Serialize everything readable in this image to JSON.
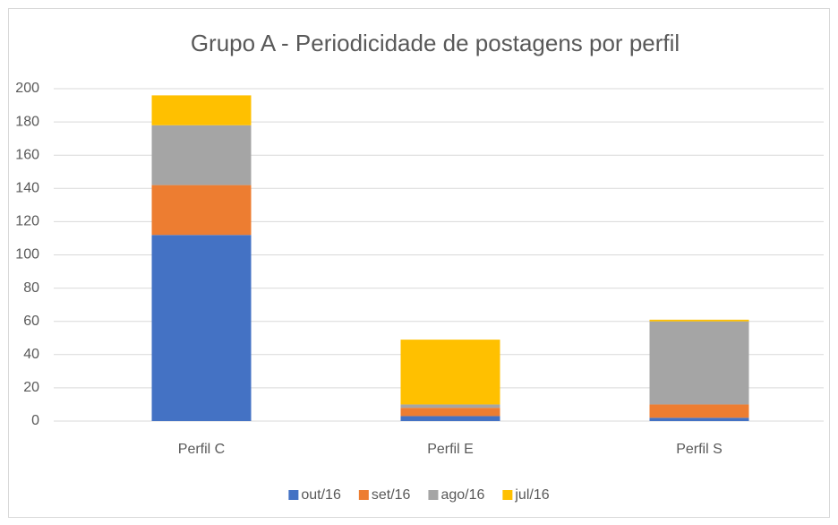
{
  "chart_data": {
    "type": "stacked_bar",
    "title": "Grupo A - Periodicidade de postagens por perfil",
    "categories": [
      "Perfil C",
      "Perfil E",
      "Perfil S"
    ],
    "series": [
      {
        "name": "out/16",
        "color": "#4472c4",
        "values": [
          112,
          3,
          2
        ]
      },
      {
        "name": "set/16",
        "color": "#ed7d31",
        "values": [
          30,
          5,
          8
        ]
      },
      {
        "name": "ago/16",
        "color": "#a5a5a5",
        "values": [
          36,
          2,
          50
        ]
      },
      {
        "name": "jul/16",
        "color": "#ffc000",
        "values": [
          18,
          39,
          1
        ]
      }
    ],
    "ylim": [
      0,
      200
    ],
    "yticks": [
      0,
      20,
      40,
      60,
      80,
      100,
      120,
      140,
      160,
      180,
      200
    ],
    "grid": true,
    "legend": "bottom"
  }
}
